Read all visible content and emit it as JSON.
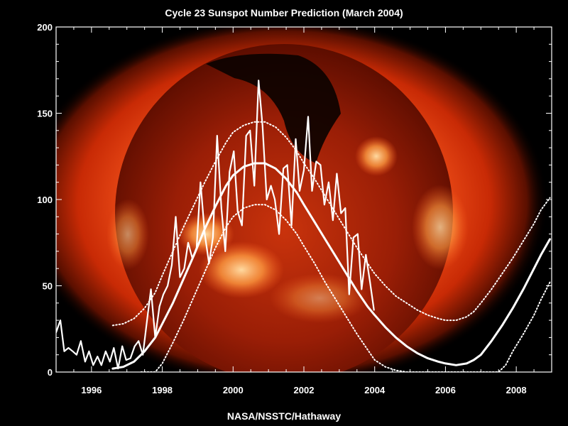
{
  "chart_data": {
    "type": "line",
    "title": "Cycle 23 Sunspot Number Prediction (March 2004)",
    "credit": "NASA/NSSTC/Hathaway",
    "xlim": [
      1995.0,
      2009.0
    ],
    "ylim": [
      0,
      200
    ],
    "x_ticks": [
      "1996",
      "1998",
      "2000",
      "2002",
      "2004",
      "2006",
      "2008"
    ],
    "y_ticks": [
      "0",
      "50",
      "100",
      "150",
      "200"
    ],
    "background": "solar x-ray image",
    "series": [
      {
        "style": "solid-thin",
        "x": [
          1995.0,
          1995.12,
          1995.23,
          1995.35,
          1995.47,
          1995.58,
          1995.7,
          1995.82,
          1995.93,
          1996.05,
          1996.17,
          1996.28,
          1996.4,
          1996.52,
          1996.63,
          1996.75,
          1996.87,
          1996.98,
          1997.1,
          1997.22,
          1997.33,
          1997.45,
          1997.57,
          1997.68,
          1997.8,
          1997.92,
          1998.03,
          1998.15,
          1998.27,
          1998.38,
          1998.5,
          1998.62,
          1998.73,
          1998.85,
          1998.97,
          1999.08,
          1999.2,
          1999.32,
          1999.43,
          1999.55,
          1999.67,
          1999.78,
          1999.9,
          2000.02,
          2000.13,
          2000.25,
          2000.37,
          2000.48,
          2000.6,
          2000.72,
          2000.83,
          2000.95,
          2001.07,
          2001.18,
          2001.3,
          2001.42,
          2001.53,
          2001.65,
          2001.77,
          2001.88,
          2002.0,
          2002.12,
          2002.23,
          2002.35,
          2002.47,
          2002.58,
          2002.7,
          2002.82,
          2002.93,
          2003.05,
          2003.17,
          2003.28,
          2003.4,
          2003.52,
          2003.63,
          2003.75,
          2003.87,
          2003.98
        ],
        "y": [
          23,
          30,
          12,
          14,
          12,
          10,
          18,
          6,
          12,
          4,
          9,
          4,
          12,
          6,
          14,
          2,
          15,
          7,
          8,
          15,
          18,
          10,
          30,
          48,
          20,
          38,
          45,
          50,
          62,
          90,
          55,
          60,
          75,
          66,
          72,
          110,
          80,
          63,
          78,
          137,
          95,
          70,
          116,
          128,
          93,
          85,
          137,
          140,
          108,
          169,
          143,
          100,
          108,
          100,
          80,
          118,
          120,
          85,
          135,
          105,
          117,
          148,
          105,
          122,
          120,
          97,
          110,
          88,
          115,
          92,
          95,
          45,
          78,
          80,
          48,
          68,
          52,
          36
        ]
      },
      {
        "style": "solid-thick",
        "x": [
          1996.6,
          1996.9,
          1997.2,
          1997.5,
          1997.8,
          1998.0,
          1998.3,
          1998.6,
          1998.9,
          1999.2,
          1999.5,
          1999.8,
          2000.0,
          2000.3,
          2000.6,
          2000.9,
          2001.2,
          2001.5,
          2001.8,
          2002.0,
          2002.3,
          2002.6,
          2002.9,
          2003.2,
          2003.5,
          2003.8,
          2004.0,
          2004.3,
          2004.6,
          2004.9,
          2005.2,
          2005.5,
          2005.8,
          2006.0,
          2006.3,
          2006.6,
          2006.8,
          2007.0,
          2007.3,
          2007.6,
          2007.9,
          2008.2,
          2008.5,
          2008.7,
          2008.95
        ],
        "y": [
          2,
          3,
          6,
          12,
          20,
          28,
          40,
          54,
          68,
          83,
          96,
          108,
          114,
          119,
          121,
          121,
          118,
          112,
          104,
          97,
          87,
          77,
          67,
          57,
          47,
          38,
          33,
          26,
          20,
          15,
          11,
          8,
          6,
          5,
          4,
          5,
          7,
          10,
          18,
          27,
          37,
          48,
          60,
          68,
          77
        ]
      },
      {
        "style": "dotted-upper",
        "x": [
          1996.6,
          1996.9,
          1997.2,
          1997.5,
          1997.8,
          1998.0,
          1998.3,
          1998.6,
          1998.9,
          1999.2,
          1999.5,
          1999.8,
          2000.0,
          2000.3,
          2000.6,
          2000.9,
          2001.2,
          2001.5,
          2001.8,
          2002.0,
          2002.3,
          2002.6,
          2002.9,
          2003.2,
          2003.5,
          2003.8,
          2004.0,
          2004.3,
          2004.6,
          2004.9,
          2005.2,
          2005.5,
          2005.8,
          2006.0,
          2006.3,
          2006.6,
          2006.8,
          2007.0,
          2007.3,
          2007.6,
          2007.9,
          2008.2,
          2008.5,
          2008.7,
          2008.95
        ],
        "y": [
          27,
          28,
          31,
          37,
          46,
          56,
          70,
          84,
          97,
          110,
          122,
          133,
          139,
          143,
          145,
          145,
          142,
          136,
          128,
          121,
          112,
          102,
          92,
          82,
          72,
          63,
          57,
          50,
          44,
          40,
          36,
          33,
          31,
          30,
          30,
          32,
          35,
          40,
          48,
          57,
          66,
          76,
          86,
          94,
          101
        ]
      },
      {
        "style": "dotted-lower",
        "x": [
          1997.4,
          1997.6,
          1997.8,
          1998.0,
          1998.3,
          1998.6,
          1998.9,
          1999.2,
          1999.5,
          1999.8,
          2000.0,
          2000.3,
          2000.6,
          2000.9,
          2001.2,
          2001.5,
          2001.8,
          2002.0,
          2002.3,
          2002.6,
          2002.9,
          2003.2,
          2003.5,
          2003.8,
          2004.0,
          2004.3,
          2004.6,
          2004.9,
          2005.1,
          2007.5,
          2007.7,
          2007.9,
          2008.2,
          2008.5,
          2008.7,
          2008.95
        ],
        "y": [
          0,
          0,
          0,
          5,
          17,
          30,
          44,
          58,
          72,
          84,
          90,
          95,
          97,
          97,
          94,
          88,
          80,
          73,
          63,
          52,
          42,
          32,
          22,
          13,
          7,
          3,
          1,
          0,
          0,
          0,
          4,
          12,
          22,
          33,
          42,
          52
        ]
      }
    ]
  }
}
